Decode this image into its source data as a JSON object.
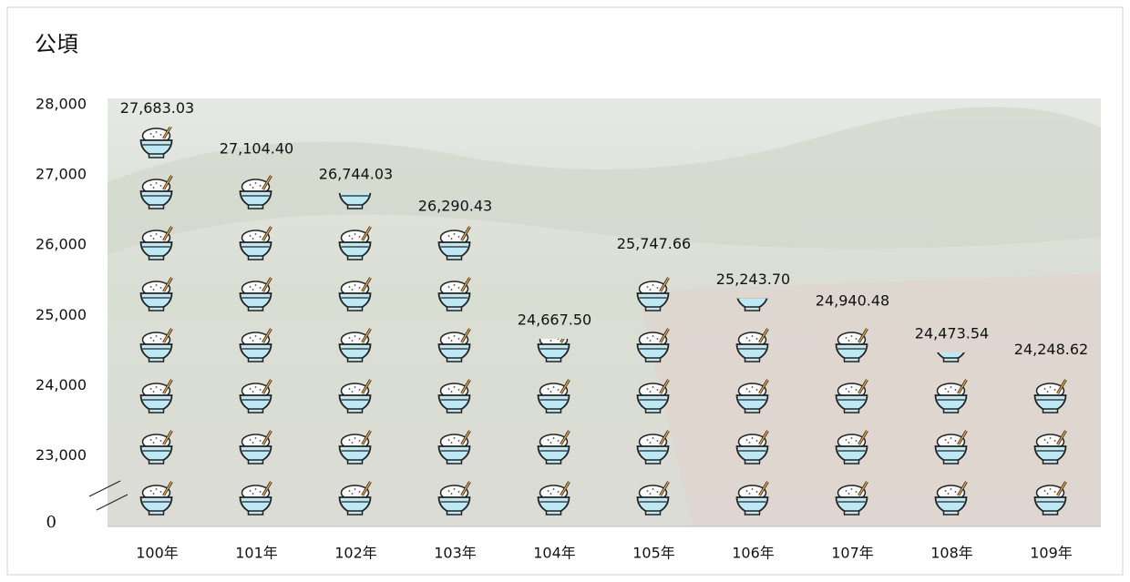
{
  "chart_data": {
    "type": "pictograph",
    "y_unit_label": "公頃",
    "categories": [
      "100年",
      "101年",
      "102年",
      "103年",
      "104年",
      "105年",
      "106年",
      "107年",
      "108年",
      "109年"
    ],
    "values": [
      27683.03,
      27104.4,
      26744.03,
      26290.43,
      24667.5,
      25747.66,
      25243.7,
      24940.48,
      24473.54,
      24248.62
    ],
    "value_labels": [
      "27,683.03",
      "27,104.40",
      "26,744.03",
      "26,290.43",
      "24,667.50",
      "25,747.66",
      "25,243.70",
      "24,940.48",
      "24,473.54",
      "24,248.62"
    ],
    "color": "#bfe8f5",
    "ylim": [
      0,
      28000
    ],
    "axis_break": [
      0,
      22100
    ],
    "yticks": [
      0,
      {
        "value": 23000,
        "label": "23,000"
      },
      {
        "value": 24000,
        "label": "24,000"
      },
      {
        "value": 25000,
        "label": "25,000"
      },
      {
        "value": 26000,
        "label": "26,000"
      },
      {
        "value": 27000,
        "label": "27,000"
      },
      {
        "value": 28000,
        "label": "28,000"
      }
    ],
    "grid": false
  }
}
